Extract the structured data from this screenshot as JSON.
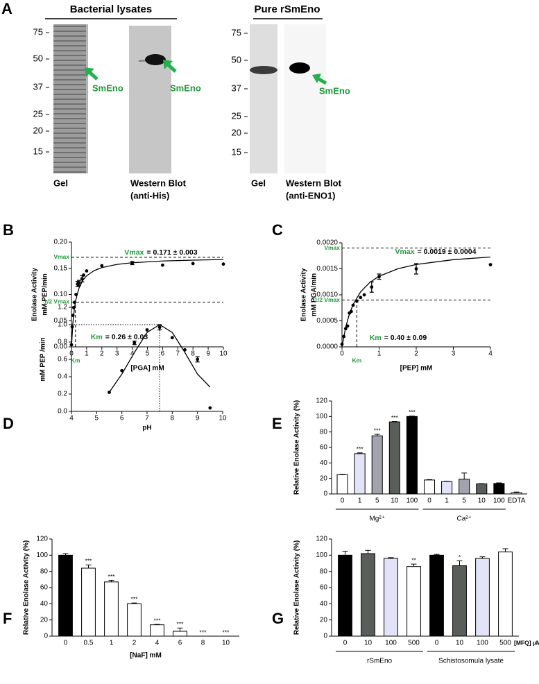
{
  "panel_a": {
    "panel": "A",
    "titles": [
      "Bacterial lysates",
      "Pure rSmEno"
    ],
    "markers": [
      [
        75,
        50,
        37,
        25,
        20,
        15
      ],
      [
        75,
        50,
        37,
        25,
        20,
        15
      ]
    ],
    "target_labels": [
      "SmEno",
      "SmEno",
      "SmEno"
    ],
    "lane_labels": [
      "Gel",
      "Western Blot",
      "(anti-His)",
      "Gel",
      "Western Blot",
      "(anti-ENO1)"
    ]
  },
  "chart_data": [
    {
      "panel": "B",
      "type": "scatter",
      "ylabel": [
        "Enolase Activity",
        "mM PEP/min"
      ],
      "xlabel": "[PGA] mM",
      "xlim": [
        0,
        10
      ],
      "ylim": [
        0,
        0.2
      ],
      "xticks": [
        0,
        1,
        2,
        3,
        4,
        5,
        6,
        7,
        8,
        9,
        10
      ],
      "yticks": [
        {
          "value": 0,
          "label": "0.00"
        },
        0.05,
        {
          "value": 0.1,
          "label": "0.10"
        },
        0.15,
        {
          "value": 0.2,
          "label": "0.20"
        }
      ],
      "x": [
        0,
        0.05,
        0.1,
        0.15,
        0.2,
        0.3,
        0.4,
        0.5,
        0.7,
        0.8,
        1,
        2,
        4,
        6,
        8,
        10
      ],
      "y": [
        0.004,
        0.038,
        0.06,
        0.075,
        0.085,
        0.1,
        0.12,
        0.122,
        0.13,
        0.137,
        0.145,
        0.155,
        0.16,
        0.156,
        0.159,
        0.158
      ],
      "errors": [
        null,
        null,
        null,
        null,
        null,
        null,
        0.005,
        0.005,
        0.006,
        null,
        null,
        null,
        0.003,
        null,
        null,
        null
      ],
      "color": "#000000",
      "fit": {
        "x": [
          0,
          0.1,
          0.2,
          0.3,
          0.5,
          0.75,
          1,
          1.5,
          2,
          3,
          4,
          6,
          8,
          10
        ],
        "y": [
          0,
          0.0475,
          0.0743,
          0.0916,
          0.1125,
          0.127,
          0.1357,
          0.1457,
          0.1513,
          0.1574,
          0.1606,
          0.1639,
          0.1656,
          0.1667
        ]
      },
      "ref_style": "dashed",
      "ref_lines": [
        {
          "axis": "y",
          "value": 0.171,
          "label": "Vmax"
        },
        {
          "axis": "y",
          "value": 0.0855,
          "label": "1/2 Vmax"
        },
        {
          "axis": "x",
          "value": 0.26,
          "label": "Km"
        }
      ],
      "annotations": [
        {
          "key": "Vmax",
          "text": "= 0.171 ± 0.003"
        },
        {
          "key": "Km",
          "text": "= 0.26 ± 0.03"
        }
      ]
    },
    {
      "panel": "C",
      "type": "scatter",
      "ylabel": [
        "Enolase Activity",
        "mM PGA/min"
      ],
      "xlabel": "[PEP] mM",
      "xlim": [
        0,
        4
      ],
      "ylim": [
        0,
        0.002
      ],
      "xticks": [
        0,
        1,
        2,
        3,
        4
      ],
      "yticks": [
        {
          "value": 0,
          "label": "0.0000"
        },
        0.0005,
        {
          "value": 0.001,
          "label": "0.0010"
        },
        0.0015,
        {
          "value": 0.002,
          "label": "0.0020"
        }
      ],
      "x": [
        0,
        0.05,
        0.1,
        0.15,
        0.2,
        0.25,
        0.3,
        0.4,
        0.5,
        0.6,
        0.8,
        1,
        2,
        4
      ],
      "y": [
        5e-05,
        0.0002,
        0.00035,
        0.0004,
        0.00065,
        0.00068,
        0.0008,
        0.00088,
        0.00095,
        0.001,
        0.00115,
        0.00135,
        0.0015,
        0.00158
      ],
      "errors": [
        null,
        null,
        null,
        null,
        null,
        null,
        null,
        null,
        null,
        null,
        0.0001,
        5e-05,
        0.0001,
        null
      ],
      "color": "#000000",
      "fit": {
        "x": [
          0,
          0.1,
          0.2,
          0.3,
          0.5,
          0.75,
          1,
          1.5,
          2,
          3,
          4
        ],
        "y": [
          0,
          0.00038,
          0.000633,
          0.000814,
          0.001056,
          0.001239,
          0.001357,
          0.0015,
          0.001583,
          0.001676,
          0.001727
        ]
      },
      "ref_style": "dashed",
      "ref_lines": [
        {
          "axis": "y",
          "value": 0.0019,
          "label": "Vmax"
        },
        {
          "axis": "y",
          "value": 0.0009,
          "label": "1/2 Vmax"
        },
        {
          "axis": "x",
          "value": 0.4,
          "label": "Km"
        }
      ],
      "annotations": [
        {
          "key": "Vmax",
          "text": "= 0.0019 ± 0.0004"
        },
        {
          "key": "Km",
          "text": "= 0.40 ± 0.09"
        }
      ]
    },
    {
      "panel": "D",
      "type": "scatter",
      "ylabel": "mM PEP /min",
      "xlabel": "pH",
      "xlim": [
        4,
        10
      ],
      "ylim": [
        0,
        1.2
      ],
      "xticks": [
        4,
        5,
        6,
        7,
        8,
        9,
        10
      ],
      "yticks": [
        {
          "value": 0,
          "label": "0.0"
        },
        0.2,
        0.4,
        0.6,
        0.8,
        {
          "value": 1,
          "label": "1.0"
        },
        1.2
      ],
      "x": [
        5.5,
        6,
        6.5,
        7,
        7.5,
        8,
        8.5,
        9,
        9.5
      ],
      "y": [
        0.22,
        0.47,
        0.79,
        0.94,
        0.97,
        0.85,
        0.71,
        0.6,
        0.04
      ],
      "errors": [
        null,
        null,
        0.02,
        null,
        0.03,
        null,
        null,
        0.03,
        null
      ],
      "color": "#000000",
      "fit": {
        "x": [
          5.5,
          6,
          6.5,
          7,
          7.5,
          8,
          8.5,
          9,
          9.5
        ],
        "y": [
          0.22,
          0.43,
          0.68,
          0.91,
          1.0,
          0.91,
          0.68,
          0.43,
          0.28
        ]
      },
      "ref_style": "dotted",
      "ref_lines": [
        {
          "axis": "y",
          "value": 1
        },
        {
          "axis": "x",
          "value": 7.5
        }
      ]
    },
    {
      "panel": "E",
      "type": "bar",
      "ylabel": "Relative Enolase Activity (%)",
      "ylim": [
        0,
        120
      ],
      "yticks": [
        0,
        20,
        40,
        60,
        80,
        100,
        120
      ],
      "categories": [
        "0",
        "1",
        "5",
        "10",
        "100",
        "0",
        "1",
        "5",
        "10",
        "100",
        "EDTA"
      ],
      "values": [
        25,
        52,
        75,
        93,
        100,
        18,
        16,
        19,
        13,
        13.5,
        1.5
      ],
      "errors": [
        0.5,
        1,
        2,
        0.5,
        0.5,
        0.5,
        0.3,
        8,
        0.3,
        0.8,
        1
      ],
      "colors": [
        "#ffffff",
        "#e2e2f8",
        "#a3a3ad",
        "#5a5e5a",
        "#000000",
        "#ffffff",
        "#e2e2f8",
        "#a3a3ad",
        "#5a5e5a",
        "#000000",
        "#ffffff"
      ],
      "significance": [
        null,
        "***",
        "***",
        "***",
        "***",
        null,
        null,
        null,
        null,
        null,
        null
      ],
      "groups": [
        "Mg²⁺",
        "Ca²⁺"
      ]
    },
    {
      "panel": "F",
      "type": "bar",
      "ylabel": "Relative Enolase Activity (%)",
      "xlabel": "[NaF] mM",
      "ylim": [
        0,
        120
      ],
      "yticks": [
        0,
        20,
        40,
        60,
        80,
        100,
        120
      ],
      "categories": [
        "0",
        "0.5",
        "1",
        "2",
        "4",
        "6",
        "8",
        "10"
      ],
      "values": [
        100,
        84,
        67,
        40,
        14,
        6,
        0,
        0
      ],
      "errors": [
        2,
        4,
        2,
        1,
        0.5,
        4,
        null,
        null
      ],
      "colors": [
        "#000000",
        "#ffffff",
        "#ffffff",
        "#ffffff",
        "#ffffff",
        "#ffffff",
        "#ffffff",
        "#ffffff"
      ],
      "significance": [
        null,
        "***",
        "***",
        "***",
        "***",
        "***",
        "***",
        "***"
      ]
    },
    {
      "panel": "G",
      "type": "bar",
      "ylabel": "Relative Enolase Activity (%)",
      "xlabel": "[MFQ] µM",
      "ylim": [
        0,
        120
      ],
      "yticks": [
        0,
        20,
        40,
        60,
        80,
        100,
        120
      ],
      "categories": [
        "0",
        "10",
        "100",
        "500",
        "0",
        "10",
        "100",
        "500"
      ],
      "values": [
        100,
        102,
        96,
        86,
        100,
        87,
        96,
        104
      ],
      "errors": [
        5,
        4,
        1,
        3,
        1,
        6,
        2,
        4
      ],
      "colors": [
        "#000000",
        "#5a5e5a",
        "#e2e2f8",
        "#ffffff",
        "#000000",
        "#5a5e5a",
        "#e2e2f8",
        "#ffffff"
      ],
      "significance": [
        null,
        null,
        null,
        "**",
        null,
        "*",
        null,
        null
      ],
      "groups": [
        "rSmEno",
        "Schistosomula lysate"
      ]
    }
  ]
}
